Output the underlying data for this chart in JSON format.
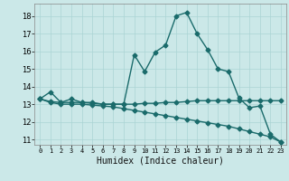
{
  "xlabel": "Humidex (Indice chaleur)",
  "bg_color": "#cbe8e8",
  "grid_color": "#aad4d4",
  "line_color": "#1a6b6b",
  "xlim": [
    -0.5,
    23.5
  ],
  "ylim": [
    10.7,
    18.7
  ],
  "yticks": [
    11,
    12,
    13,
    14,
    15,
    16,
    17,
    18
  ],
  "xticks": [
    0,
    1,
    2,
    3,
    4,
    5,
    6,
    7,
    8,
    9,
    10,
    11,
    12,
    13,
    14,
    15,
    16,
    17,
    18,
    19,
    20,
    21,
    22,
    23
  ],
  "line1_x": [
    0,
    1,
    2,
    3,
    4,
    5,
    6,
    7,
    8,
    9,
    10,
    11,
    12,
    13,
    14,
    15,
    16,
    17,
    18,
    19,
    20,
    21,
    22,
    23
  ],
  "line1_y": [
    13.3,
    13.7,
    13.1,
    13.3,
    13.1,
    13.1,
    13.0,
    13.0,
    13.0,
    15.8,
    14.85,
    15.95,
    16.35,
    18.0,
    18.2,
    17.0,
    16.1,
    15.0,
    14.85,
    13.35,
    12.8,
    12.9,
    11.3,
    10.85
  ],
  "line2_x": [
    0,
    1,
    2,
    3,
    4,
    5,
    6,
    7,
    8,
    9,
    10,
    11,
    12,
    13,
    14,
    15,
    16,
    17,
    18,
    19,
    20,
    21,
    22,
    23
  ],
  "line2_y": [
    13.3,
    13.15,
    13.1,
    13.1,
    13.1,
    13.05,
    13.0,
    13.0,
    13.0,
    13.0,
    13.05,
    13.05,
    13.1,
    13.1,
    13.15,
    13.2,
    13.2,
    13.2,
    13.2,
    13.2,
    13.2,
    13.2,
    13.2,
    13.2
  ],
  "line3_x": [
    0,
    1,
    2,
    3,
    4,
    5,
    6,
    7,
    8,
    9,
    10,
    11,
    12,
    13,
    14,
    15,
    16,
    17,
    18,
    19,
    20,
    21,
    22,
    23
  ],
  "line3_y": [
    13.3,
    13.1,
    13.0,
    13.0,
    13.0,
    12.95,
    12.9,
    12.85,
    12.75,
    12.65,
    12.55,
    12.45,
    12.35,
    12.25,
    12.15,
    12.05,
    11.95,
    11.85,
    11.75,
    11.6,
    11.45,
    11.3,
    11.15,
    10.85
  ],
  "marker": "D",
  "markersize": 2.5,
  "linewidth": 1.0
}
